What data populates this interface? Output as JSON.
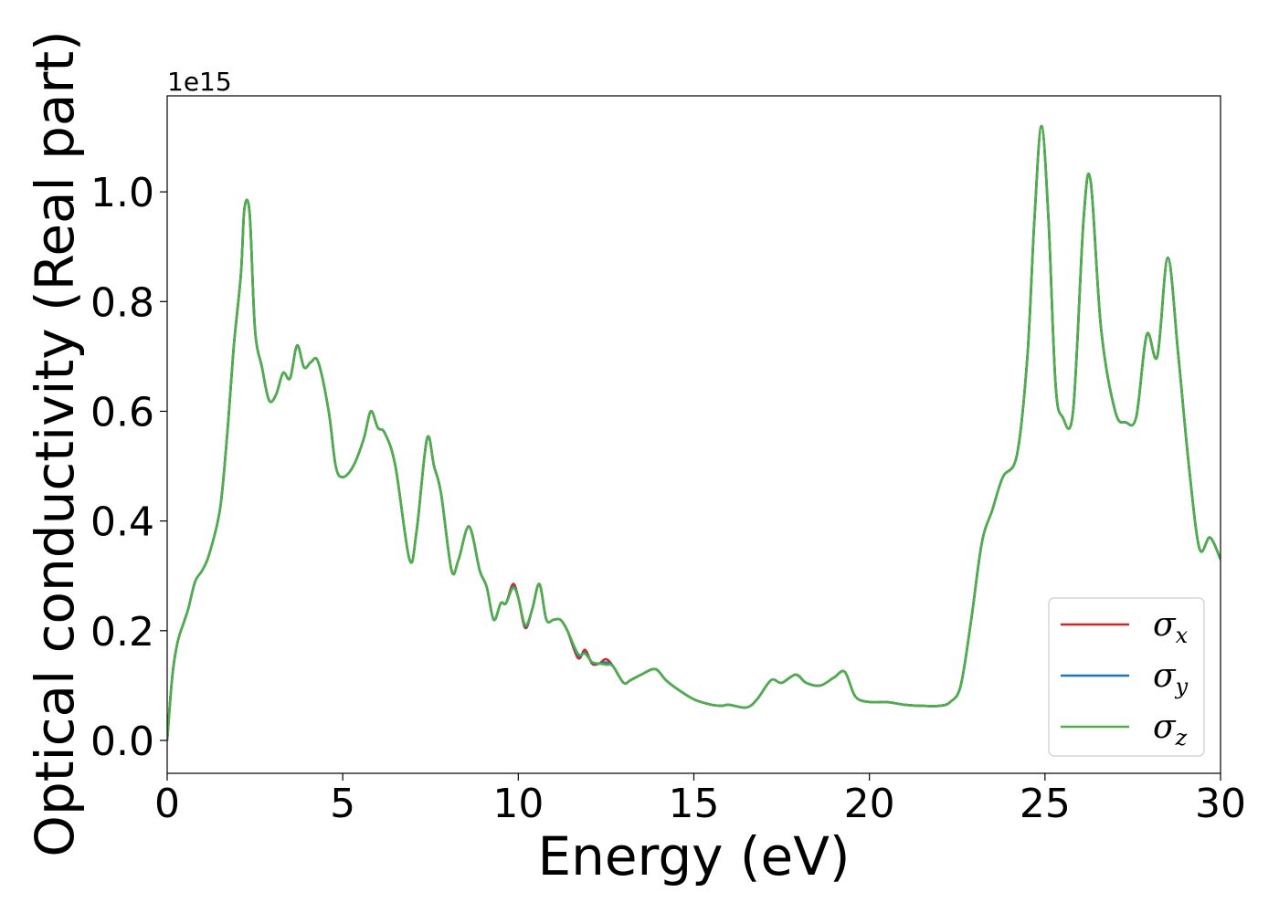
{
  "chart_data": {
    "type": "line",
    "title": "",
    "xlabel": "Energy (eV)",
    "ylabel": "Optical conductivity (Real part)",
    "y_offset_label": "1e15",
    "xlim": [
      0,
      30
    ],
    "ylim": [
      -0.06,
      1.175
    ],
    "xticks": [
      0,
      5,
      10,
      15,
      20,
      25,
      30
    ],
    "xtick_labels": [
      "0",
      "5",
      "10",
      "15",
      "20",
      "25",
      "30"
    ],
    "yticks": [
      0.0,
      0.2,
      0.4,
      0.6,
      0.8,
      1.0
    ],
    "ytick_labels": [
      "0.0",
      "0.2",
      "0.4",
      "0.6",
      "0.8",
      "1.0"
    ],
    "grid": false,
    "legend_position": "lower-right",
    "legend": [
      {
        "base": "σ",
        "sub": "x",
        "color": "#d62728"
      },
      {
        "base": "σ",
        "sub": "y",
        "color": "#1f77b4"
      },
      {
        "base": "σ",
        "sub": "z",
        "color": "#4daf4a"
      }
    ],
    "x": [
      0,
      0.15,
      0.3,
      0.5,
      0.6,
      0.8,
      1.0,
      1.2,
      1.5,
      1.7,
      1.9,
      2.1,
      2.2,
      2.35,
      2.5,
      2.7,
      2.9,
      3.1,
      3.3,
      3.5,
      3.7,
      3.9,
      4.1,
      4.3,
      4.6,
      4.8,
      5.0,
      5.3,
      5.6,
      5.8,
      6.0,
      6.2,
      6.5,
      6.9,
      7.1,
      7.4,
      7.6,
      7.8,
      8.1,
      8.3,
      8.6,
      8.9,
      9.1,
      9.3,
      9.5,
      9.65,
      9.85,
      10.0,
      10.2,
      10.4,
      10.6,
      10.8,
      11.0,
      11.2,
      11.4,
      11.7,
      11.9,
      12.1,
      12.3,
      12.5,
      12.7,
      13.0,
      13.2,
      13.5,
      13.9,
      14.2,
      14.5,
      15.0,
      15.5,
      15.8,
      16.0,
      16.5,
      16.8,
      17.2,
      17.5,
      17.9,
      18.2,
      18.6,
      19.0,
      19.3,
      19.6,
      20.0,
      20.5,
      21.0,
      21.5,
      22.0,
      22.3,
      22.6,
      22.9,
      23.2,
      23.5,
      23.8,
      24.2,
      24.5,
      24.7,
      24.9,
      25.1,
      25.3,
      25.5,
      25.8,
      26.1,
      26.3,
      26.6,
      27.0,
      27.3,
      27.6,
      27.9,
      28.2,
      28.5,
      28.8,
      29.1,
      29.4,
      29.7,
      30.0
    ],
    "series": [
      {
        "name": "σx",
        "color": "#d62728",
        "values": [
          0.0,
          0.12,
          0.18,
          0.22,
          0.24,
          0.29,
          0.31,
          0.34,
          0.42,
          0.55,
          0.72,
          0.85,
          0.97,
          0.96,
          0.75,
          0.68,
          0.62,
          0.63,
          0.67,
          0.66,
          0.72,
          0.68,
          0.69,
          0.69,
          0.6,
          0.5,
          0.48,
          0.5,
          0.55,
          0.6,
          0.57,
          0.56,
          0.5,
          0.33,
          0.38,
          0.55,
          0.5,
          0.45,
          0.31,
          0.33,
          0.39,
          0.31,
          0.28,
          0.22,
          0.25,
          0.25,
          0.285,
          0.26,
          0.205,
          0.24,
          0.285,
          0.22,
          0.22,
          0.22,
          0.2,
          0.15,
          0.165,
          0.14,
          0.14,
          0.148,
          0.135,
          0.105,
          0.11,
          0.12,
          0.13,
          0.11,
          0.095,
          0.075,
          0.065,
          0.063,
          0.065,
          0.06,
          0.075,
          0.11,
          0.105,
          0.12,
          0.105,
          0.1,
          0.115,
          0.125,
          0.08,
          0.07,
          0.07,
          0.065,
          0.063,
          0.063,
          0.07,
          0.1,
          0.22,
          0.36,
          0.42,
          0.48,
          0.52,
          0.7,
          0.95,
          1.12,
          0.95,
          0.65,
          0.59,
          0.6,
          0.95,
          1.02,
          0.75,
          0.6,
          0.58,
          0.59,
          0.74,
          0.7,
          0.88,
          0.7,
          0.5,
          0.35,
          0.37,
          0.33
        ]
      },
      {
        "name": "σy",
        "color": "#1f77b4",
        "values": [
          0.0,
          0.12,
          0.18,
          0.22,
          0.24,
          0.29,
          0.31,
          0.34,
          0.42,
          0.55,
          0.72,
          0.85,
          0.97,
          0.96,
          0.75,
          0.68,
          0.62,
          0.63,
          0.67,
          0.66,
          0.72,
          0.68,
          0.69,
          0.69,
          0.6,
          0.5,
          0.48,
          0.5,
          0.55,
          0.6,
          0.57,
          0.56,
          0.5,
          0.33,
          0.38,
          0.55,
          0.5,
          0.45,
          0.31,
          0.33,
          0.39,
          0.31,
          0.28,
          0.22,
          0.25,
          0.25,
          0.28,
          0.26,
          0.208,
          0.24,
          0.285,
          0.22,
          0.22,
          0.22,
          0.2,
          0.155,
          0.16,
          0.142,
          0.14,
          0.142,
          0.135,
          0.105,
          0.11,
          0.12,
          0.13,
          0.11,
          0.095,
          0.075,
          0.065,
          0.063,
          0.065,
          0.06,
          0.075,
          0.11,
          0.105,
          0.12,
          0.105,
          0.1,
          0.115,
          0.125,
          0.08,
          0.07,
          0.07,
          0.065,
          0.063,
          0.063,
          0.07,
          0.1,
          0.22,
          0.36,
          0.42,
          0.48,
          0.52,
          0.7,
          0.95,
          1.12,
          0.95,
          0.65,
          0.59,
          0.6,
          0.95,
          1.02,
          0.75,
          0.6,
          0.58,
          0.59,
          0.74,
          0.7,
          0.88,
          0.7,
          0.5,
          0.35,
          0.37,
          0.33
        ]
      },
      {
        "name": "σz",
        "color": "#4daf4a",
        "values": [
          0.0,
          0.12,
          0.18,
          0.22,
          0.24,
          0.29,
          0.31,
          0.34,
          0.42,
          0.55,
          0.72,
          0.85,
          0.97,
          0.96,
          0.75,
          0.68,
          0.62,
          0.63,
          0.67,
          0.66,
          0.72,
          0.68,
          0.69,
          0.69,
          0.6,
          0.5,
          0.48,
          0.5,
          0.55,
          0.6,
          0.57,
          0.56,
          0.5,
          0.33,
          0.38,
          0.55,
          0.5,
          0.45,
          0.31,
          0.33,
          0.39,
          0.31,
          0.28,
          0.22,
          0.25,
          0.25,
          0.278,
          0.26,
          0.21,
          0.24,
          0.285,
          0.22,
          0.22,
          0.22,
          0.2,
          0.158,
          0.158,
          0.143,
          0.14,
          0.138,
          0.135,
          0.105,
          0.11,
          0.12,
          0.13,
          0.11,
          0.095,
          0.075,
          0.065,
          0.063,
          0.065,
          0.06,
          0.075,
          0.11,
          0.105,
          0.12,
          0.105,
          0.1,
          0.115,
          0.125,
          0.08,
          0.07,
          0.07,
          0.065,
          0.063,
          0.063,
          0.07,
          0.1,
          0.22,
          0.36,
          0.42,
          0.48,
          0.52,
          0.7,
          0.95,
          1.12,
          0.95,
          0.65,
          0.59,
          0.6,
          0.95,
          1.02,
          0.75,
          0.6,
          0.58,
          0.59,
          0.74,
          0.7,
          0.88,
          0.7,
          0.5,
          0.35,
          0.37,
          0.33
        ]
      }
    ]
  }
}
